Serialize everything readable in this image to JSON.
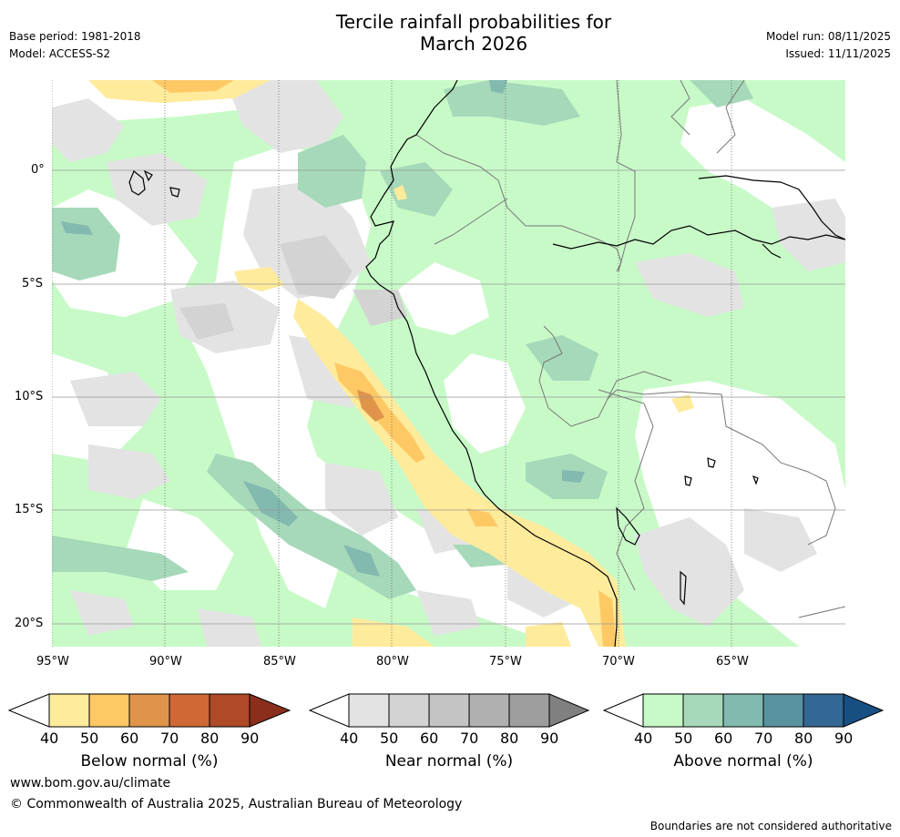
{
  "header": {
    "title_line1": "Tercile rainfall probabilities for",
    "title_line2": "March 2026",
    "base_period": "Base period: 1981-2018",
    "model": "Model: ACCESS-S2",
    "model_run": "Model run: 08/11/2025",
    "issued": "Issued: 11/11/2025"
  },
  "map": {
    "lon_ticks": [
      "95°W",
      "90°W",
      "85°W",
      "80°W",
      "75°W",
      "70°W",
      "65°W"
    ],
    "lat_ticks": [
      "0°",
      "5°S",
      "10°S",
      "15°S",
      "20°S"
    ]
  },
  "colorbars": [
    {
      "label": "Below normal (%)",
      "ticks": [
        "40",
        "50",
        "60",
        "70",
        "80",
        "90"
      ],
      "colors": [
        "#ffeb9c",
        "#fec965",
        "#e0944a",
        "#cf6835",
        "#ae4a28",
        "#8b2e1c"
      ]
    },
    {
      "label": "Near normal (%)",
      "ticks": [
        "40",
        "50",
        "60",
        "70",
        "80",
        "90"
      ],
      "colors": [
        "#e3e3e3",
        "#d3d3d3",
        "#c4c4c4",
        "#b0b0b0",
        "#9e9e9e",
        "#808080"
      ]
    },
    {
      "label": "Above normal (%)",
      "ticks": [
        "40",
        "50",
        "60",
        "70",
        "80",
        "90"
      ],
      "colors": [
        "#c8fac8",
        "#a6d9b9",
        "#82bab0",
        "#5a93a0",
        "#336894",
        "#174f83"
      ]
    }
  ],
  "footer": {
    "url": "www.bom.gov.au/climate",
    "copyright": "© Commonwealth of Australia 2025, Australian Bureau of Meteorology",
    "disclaimer": "Boundaries are not considered authoritative"
  }
}
